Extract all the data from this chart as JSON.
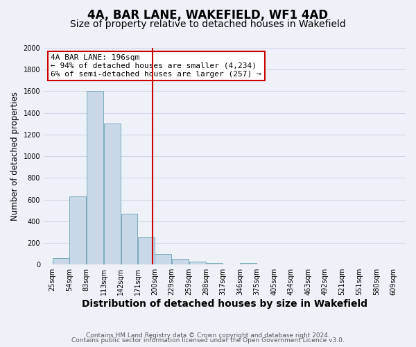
{
  "title": "4A, BAR LANE, WAKEFIELD, WF1 4AD",
  "subtitle": "Size of property relative to detached houses in Wakefield",
  "xlabel": "Distribution of detached houses by size in Wakefield",
  "ylabel": "Number of detached properties",
  "bar_values": [
    60,
    630,
    1600,
    1300,
    470,
    250,
    100,
    50,
    30,
    15,
    0,
    15,
    0,
    0,
    0,
    0,
    0,
    0,
    0
  ],
  "bar_left_edges": [
    25,
    54,
    83,
    113,
    142,
    171,
    200,
    229,
    259,
    288,
    317,
    346,
    375,
    405,
    434,
    463,
    492,
    521,
    551
  ],
  "bar_widths": [
    29,
    29,
    30,
    29,
    29,
    29,
    29,
    30,
    29,
    29,
    29,
    29,
    30,
    29,
    29,
    29,
    29,
    30,
    29
  ],
  "x_tick_positions": [
    25,
    54,
    83,
    113,
    142,
    171,
    200,
    229,
    259,
    288,
    317,
    346,
    375,
    405,
    434,
    463,
    492,
    521,
    551,
    580,
    609
  ],
  "x_tick_labels": [
    "25sqm",
    "54sqm",
    "83sqm",
    "113sqm",
    "142sqm",
    "171sqm",
    "200sqm",
    "229sqm",
    "259sqm",
    "288sqm",
    "317sqm",
    "346sqm",
    "375sqm",
    "405sqm",
    "434sqm",
    "463sqm",
    "492sqm",
    "521sqm",
    "551sqm",
    "580sqm",
    "609sqm"
  ],
  "bar_color": "#c8d8e8",
  "bar_edge_color": "#7aaabb",
  "red_line_x": 196,
  "red_line_color": "#cc0000",
  "ylim": [
    0,
    2000
  ],
  "yticks": [
    0,
    200,
    400,
    600,
    800,
    1000,
    1200,
    1400,
    1600,
    1800,
    2000
  ],
  "annotation_title": "4A BAR LANE: 196sqm",
  "annotation_line1": "← 94% of detached houses are smaller (4,234)",
  "annotation_line2": "6% of semi-detached houses are larger (257) →",
  "annotation_box_color": "#ffffff",
  "annotation_box_edge": "#cc0000",
  "grid_color": "#d0d8e8",
  "background_color": "#eef2f8",
  "footer_line1": "Contains HM Land Registry data © Crown copyright and database right 2024.",
  "footer_line2": "Contains public sector information licensed under the Open Government Licence v3.0.",
  "title_fontsize": 12,
  "subtitle_fontsize": 10,
  "xlabel_fontsize": 10,
  "ylabel_fontsize": 8.5,
  "tick_fontsize": 7,
  "footer_fontsize": 6.5,
  "annot_fontsize": 8
}
